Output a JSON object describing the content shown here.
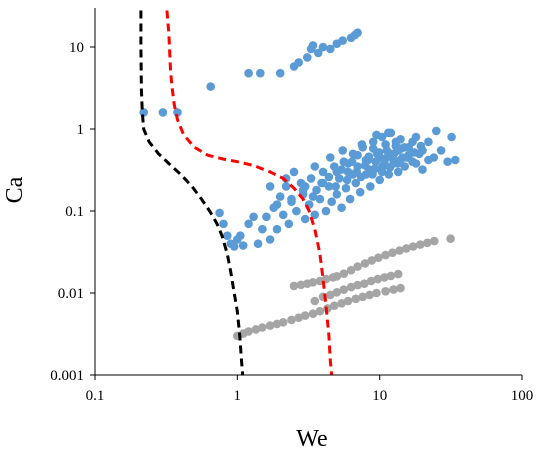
{
  "chart_data": {
    "type": "scatter",
    "title": "",
    "xlabel": "We",
    "ylabel": "Ca",
    "x_scale": "log",
    "y_scale": "log",
    "xlim": [
      0.1,
      100
    ],
    "ylim": [
      0.001,
      30
    ],
    "x_ticks": [
      0.1,
      1,
      10,
      100
    ],
    "x_tick_labels": [
      "0.1",
      "1",
      "10",
      "100"
    ],
    "y_ticks": [
      0.001,
      0.01,
      0.1,
      1,
      10
    ],
    "y_tick_labels": [
      "0.001",
      "0.01",
      "0.1",
      "1",
      "10"
    ],
    "grid": false,
    "legend": "none",
    "colors": {
      "blue": "#5b9bd5",
      "gray": "#a5a5a5",
      "black": "#000000",
      "red": "#ff0000"
    },
    "series": [
      {
        "kind": "points",
        "color": "#5b9bd5",
        "points": [
          [
            0.22,
            1.6
          ],
          [
            0.3,
            1.6
          ],
          [
            0.38,
            1.6
          ],
          [
            0.65,
            3.3
          ],
          [
            1.2,
            4.8
          ],
          [
            1.45,
            4.8
          ],
          [
            2.0,
            4.8
          ],
          [
            2.5,
            5.8
          ],
          [
            2.7,
            6.5
          ],
          [
            3.1,
            7.5
          ],
          [
            3.3,
            9.5
          ],
          [
            3.4,
            10.5
          ],
          [
            3.7,
            8.5
          ],
          [
            4.0,
            10.0
          ],
          [
            4.5,
            9.5
          ],
          [
            5.0,
            11.0
          ],
          [
            5.5,
            12.0
          ],
          [
            6.3,
            13.0
          ],
          [
            6.7,
            14.0
          ],
          [
            7.0,
            15.0
          ],
          [
            0.75,
            0.095
          ],
          [
            0.8,
            0.07
          ],
          [
            0.85,
            0.05
          ],
          [
            0.9,
            0.04
          ],
          [
            0.95,
            0.037
          ],
          [
            1.0,
            0.045
          ],
          [
            1.05,
            0.05
          ],
          [
            1.1,
            0.038
          ],
          [
            1.2,
            0.07
          ],
          [
            1.3,
            0.085
          ],
          [
            1.4,
            0.04
          ],
          [
            1.5,
            0.06
          ],
          [
            1.6,
            0.085
          ],
          [
            1.7,
            0.045
          ],
          [
            1.8,
            0.11
          ],
          [
            1.9,
            0.06
          ],
          [
            2.0,
            0.15
          ],
          [
            2.1,
            0.09
          ],
          [
            2.2,
            0.2
          ],
          [
            2.3,
            0.07
          ],
          [
            2.4,
            0.13
          ],
          [
            2.6,
            0.1
          ],
          [
            2.8,
            0.22
          ],
          [
            3.0,
            0.08
          ],
          [
            2.9,
            0.16
          ],
          [
            3.2,
            0.12
          ],
          [
            3.3,
            0.25
          ],
          [
            3.5,
            0.09
          ],
          [
            3.6,
            0.18
          ],
          [
            3.8,
            0.14
          ],
          [
            4.0,
            0.3
          ],
          [
            4.2,
            0.1
          ],
          [
            4.4,
            0.2
          ],
          [
            4.6,
            0.13
          ],
          [
            4.8,
            0.35
          ],
          [
            5.0,
            0.16
          ],
          [
            5.2,
            0.25
          ],
          [
            5.4,
            0.11
          ],
          [
            5.6,
            0.4
          ],
          [
            5.8,
            0.19
          ],
          [
            6.0,
            0.3
          ],
          [
            6.2,
            0.14
          ],
          [
            6.5,
            0.5
          ],
          [
            6.8,
            0.22
          ],
          [
            7.0,
            0.35
          ],
          [
            7.3,
            0.17
          ],
          [
            7.6,
            0.6
          ],
          [
            8.0,
            0.28
          ],
          [
            8.3,
            0.42
          ],
          [
            8.6,
            0.2
          ],
          [
            9.0,
            0.7
          ],
          [
            9.3,
            0.33
          ],
          [
            9.6,
            0.5
          ],
          [
            10.0,
            0.24
          ],
          [
            10.4,
            0.8
          ],
          [
            10.8,
            0.38
          ],
          [
            11.2,
            0.55
          ],
          [
            11.6,
            0.28
          ],
          [
            12.0,
            0.9
          ],
          [
            12.5,
            0.42
          ],
          [
            13.0,
            0.62
          ],
          [
            13.5,
            0.3
          ],
          [
            14.0,
            0.75
          ],
          [
            14.5,
            0.45
          ],
          [
            15.0,
            0.35
          ],
          [
            16.0,
            0.6
          ],
          [
            17.0,
            0.4
          ],
          [
            18.0,
            0.8
          ],
          [
            19.0,
            0.5
          ],
          [
            20.0,
            0.32
          ],
          [
            22.0,
            0.7
          ],
          [
            24.0,
            0.45
          ],
          [
            25.0,
            0.95
          ],
          [
            27.0,
            0.55
          ],
          [
            30.0,
            0.4
          ],
          [
            32.0,
            0.8
          ],
          [
            34.0,
            0.42
          ],
          [
            1.7,
            0.2
          ],
          [
            2.2,
            0.25
          ],
          [
            2.5,
            0.3
          ],
          [
            3.0,
            0.2
          ],
          [
            3.5,
            0.35
          ],
          [
            4.0,
            0.22
          ],
          [
            4.5,
            0.45
          ],
          [
            5.0,
            0.3
          ],
          [
            5.5,
            0.55
          ],
          [
            6.0,
            0.38
          ],
          [
            6.5,
            0.28
          ],
          [
            7.0,
            0.48
          ],
          [
            7.5,
            0.65
          ],
          [
            8.0,
            0.42
          ],
          [
            8.5,
            0.32
          ],
          [
            9.0,
            0.58
          ],
          [
            9.5,
            0.85
          ],
          [
            10.0,
            0.45
          ],
          [
            10.5,
            0.35
          ],
          [
            11.0,
            0.65
          ],
          [
            11.5,
            0.9
          ],
          [
            12.0,
            0.5
          ],
          [
            12.5,
            0.38
          ],
          [
            13.0,
            0.7
          ],
          [
            13.5,
            0.55
          ],
          [
            14.0,
            0.42
          ],
          [
            15.0,
            0.6
          ],
          [
            16.0,
            0.48
          ],
          [
            17.0,
            0.7
          ],
          [
            18.0,
            0.38
          ],
          [
            20.0,
            0.55
          ],
          [
            22.0,
            0.42
          ],
          [
            1.9,
            0.12
          ],
          [
            2.4,
            0.14
          ],
          [
            2.9,
            0.18
          ],
          [
            3.4,
            0.15
          ],
          [
            3.9,
            0.22
          ],
          [
            4.4,
            0.26
          ],
          [
            4.9,
            0.2
          ],
          [
            5.4,
            0.32
          ],
          [
            5.9,
            0.24
          ],
          [
            6.4,
            0.4
          ],
          [
            6.9,
            0.3
          ],
          [
            7.4,
            0.26
          ],
          [
            7.9,
            0.36
          ],
          [
            8.4,
            0.46
          ],
          [
            8.9,
            0.28
          ],
          [
            9.4,
            0.4
          ],
          [
            9.9,
            0.52
          ],
          [
            10.4,
            0.3
          ],
          [
            11.0,
            0.44
          ],
          [
            11.8,
            0.34
          ],
          [
            12.6,
            0.5
          ],
          [
            13.4,
            0.38
          ],
          [
            14.2,
            0.58
          ],
          [
            15.5,
            0.45
          ],
          [
            17.5,
            0.52
          ],
          [
            19.5,
            0.62
          ]
        ]
      },
      {
        "kind": "points",
        "color": "#a5a5a5",
        "points": [
          [
            1.0,
            0.003
          ],
          [
            1.1,
            0.0032
          ],
          [
            1.2,
            0.0034
          ],
          [
            1.35,
            0.0036
          ],
          [
            1.5,
            0.0038
          ],
          [
            1.7,
            0.004
          ],
          [
            1.9,
            0.0042
          ],
          [
            2.1,
            0.0044
          ],
          [
            2.4,
            0.0047
          ],
          [
            2.7,
            0.005
          ],
          [
            3.0,
            0.0053
          ],
          [
            3.4,
            0.0056
          ],
          [
            3.8,
            0.006
          ],
          [
            4.3,
            0.0065
          ],
          [
            4.8,
            0.007
          ],
          [
            5.4,
            0.0075
          ],
          [
            6.0,
            0.008
          ],
          [
            6.8,
            0.0085
          ],
          [
            7.6,
            0.009
          ],
          [
            8.5,
            0.0095
          ],
          [
            9.5,
            0.01
          ],
          [
            11.0,
            0.0105
          ],
          [
            12.5,
            0.011
          ],
          [
            14.0,
            0.0115
          ],
          [
            3.5,
            0.008
          ],
          [
            4.0,
            0.009
          ],
          [
            4.5,
            0.0095
          ],
          [
            5.0,
            0.0102
          ],
          [
            5.6,
            0.011
          ],
          [
            6.3,
            0.0118
          ],
          [
            7.0,
            0.0125
          ],
          [
            7.8,
            0.013
          ],
          [
            8.7,
            0.014
          ],
          [
            9.7,
            0.0148
          ],
          [
            10.8,
            0.0155
          ],
          [
            12.0,
            0.0162
          ],
          [
            13.5,
            0.017
          ],
          [
            2.5,
            0.0122
          ],
          [
            2.8,
            0.0126
          ],
          [
            3.1,
            0.013
          ],
          [
            3.4,
            0.0135
          ],
          [
            3.8,
            0.014
          ],
          [
            4.2,
            0.0148
          ],
          [
            4.7,
            0.0155
          ],
          [
            5.0,
            0.016
          ],
          [
            5.6,
            0.0172
          ],
          [
            6.3,
            0.019
          ],
          [
            7.0,
            0.021
          ],
          [
            7.9,
            0.023
          ],
          [
            8.8,
            0.025
          ],
          [
            9.8,
            0.027
          ],
          [
            11.0,
            0.029
          ],
          [
            12.3,
            0.031
          ],
          [
            13.8,
            0.033
          ],
          [
            15.4,
            0.035
          ],
          [
            17.2,
            0.037
          ],
          [
            19.3,
            0.039
          ],
          [
            21.6,
            0.041
          ],
          [
            24.2,
            0.043
          ],
          [
            31.5,
            0.046
          ]
        ]
      },
      {
        "kind": "line",
        "style": "dashed",
        "color": "#000000",
        "points": [
          [
            0.21,
            28
          ],
          [
            0.21,
            10
          ],
          [
            0.212,
            3
          ],
          [
            0.215,
            1.6
          ],
          [
            0.22,
            1.0
          ],
          [
            0.24,
            0.7
          ],
          [
            0.28,
            0.5
          ],
          [
            0.33,
            0.38
          ],
          [
            0.4,
            0.28
          ],
          [
            0.48,
            0.2
          ],
          [
            0.56,
            0.14
          ],
          [
            0.64,
            0.1
          ],
          [
            0.72,
            0.07
          ],
          [
            0.78,
            0.05
          ],
          [
            0.85,
            0.03
          ],
          [
            0.9,
            0.018
          ],
          [
            0.95,
            0.01
          ],
          [
            1.0,
            0.006
          ],
          [
            1.04,
            0.003
          ],
          [
            1.07,
            0.0015
          ],
          [
            1.09,
            0.001
          ]
        ]
      },
      {
        "kind": "line",
        "style": "dashed",
        "color": "#ff0000",
        "points": [
          [
            0.32,
            28
          ],
          [
            0.33,
            15
          ],
          [
            0.34,
            5
          ],
          [
            0.35,
            3
          ],
          [
            0.36,
            2
          ],
          [
            0.38,
            1.3
          ],
          [
            0.42,
            0.85
          ],
          [
            0.5,
            0.6
          ],
          [
            0.62,
            0.48
          ],
          [
            0.8,
            0.43
          ],
          [
            1.0,
            0.4
          ],
          [
            1.3,
            0.36
          ],
          [
            1.7,
            0.3
          ],
          [
            2.1,
            0.25
          ],
          [
            2.5,
            0.19
          ],
          [
            2.9,
            0.14
          ],
          [
            3.2,
            0.1
          ],
          [
            3.5,
            0.06
          ],
          [
            3.8,
            0.03
          ],
          [
            4.0,
            0.015
          ],
          [
            4.2,
            0.007
          ],
          [
            4.4,
            0.003
          ],
          [
            4.5,
            0.0015
          ],
          [
            4.6,
            0.001
          ]
        ]
      }
    ]
  }
}
